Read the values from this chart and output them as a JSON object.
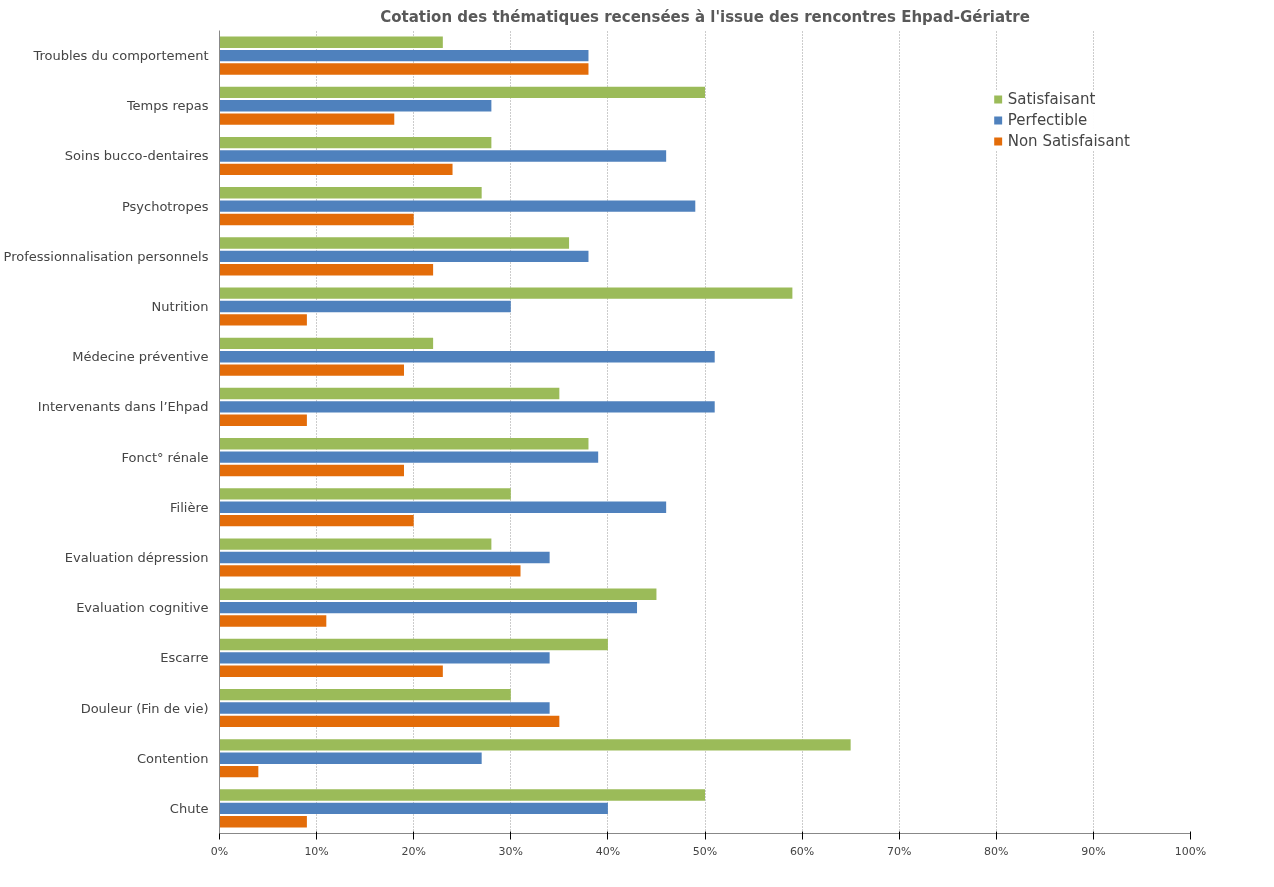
{
  "chart_data": {
    "type": "bar",
    "orientation": "horizontal",
    "title": "Cotation des thématiques recensées à l'issue des rencontres Ehpad-Gériatre",
    "categories": [
      "Troubles du comportement",
      "Temps repas",
      "Soins bucco-dentaires",
      "Psychotropes",
      "Professionnalisation personnels",
      "Nutrition",
      "Médecine préventive",
      "Intervenants dans l’Ehpad",
      "Fonct° rénale",
      "Filière",
      "Evaluation dépression",
      "Evaluation cognitive",
      "Escarre",
      "Douleur (Fin de vie)",
      "Contention",
      "Chute"
    ],
    "series": [
      {
        "name": "Satisfaisant",
        "color": "#9bbb59",
        "values": [
          23,
          50,
          28,
          27,
          36,
          59,
          22,
          35,
          38,
          30,
          28,
          45,
          40,
          30,
          65,
          50
        ]
      },
      {
        "name": "Perfectible",
        "color": "#4f81bd",
        "values": [
          38,
          28,
          46,
          49,
          38,
          30,
          51,
          51,
          39,
          46,
          34,
          43,
          34,
          34,
          27,
          40
        ]
      },
      {
        "name": "Non Satisfaisant",
        "color": "#e36c09",
        "values": [
          38,
          18,
          24,
          20,
          22,
          9,
          19,
          9,
          19,
          20,
          31,
          11,
          23,
          35,
          4,
          9
        ]
      }
    ],
    "xlim": [
      0,
      100
    ],
    "xticks": [
      {
        "value": 0,
        "label": "0%"
      },
      {
        "value": 10,
        "label": "10%"
      },
      {
        "value": 20,
        "label": "20%"
      },
      {
        "value": 30,
        "label": "30%"
      },
      {
        "value": 40,
        "label": "40%"
      },
      {
        "value": 50,
        "label": "50%"
      },
      {
        "value": 60,
        "label": "60%"
      },
      {
        "value": 70,
        "label": "70%"
      },
      {
        "value": 80,
        "label": "80%"
      },
      {
        "value": 90,
        "label": "90%"
      },
      {
        "value": 100,
        "label": "100%"
      }
    ],
    "grid": "x",
    "legend": "top right"
  }
}
